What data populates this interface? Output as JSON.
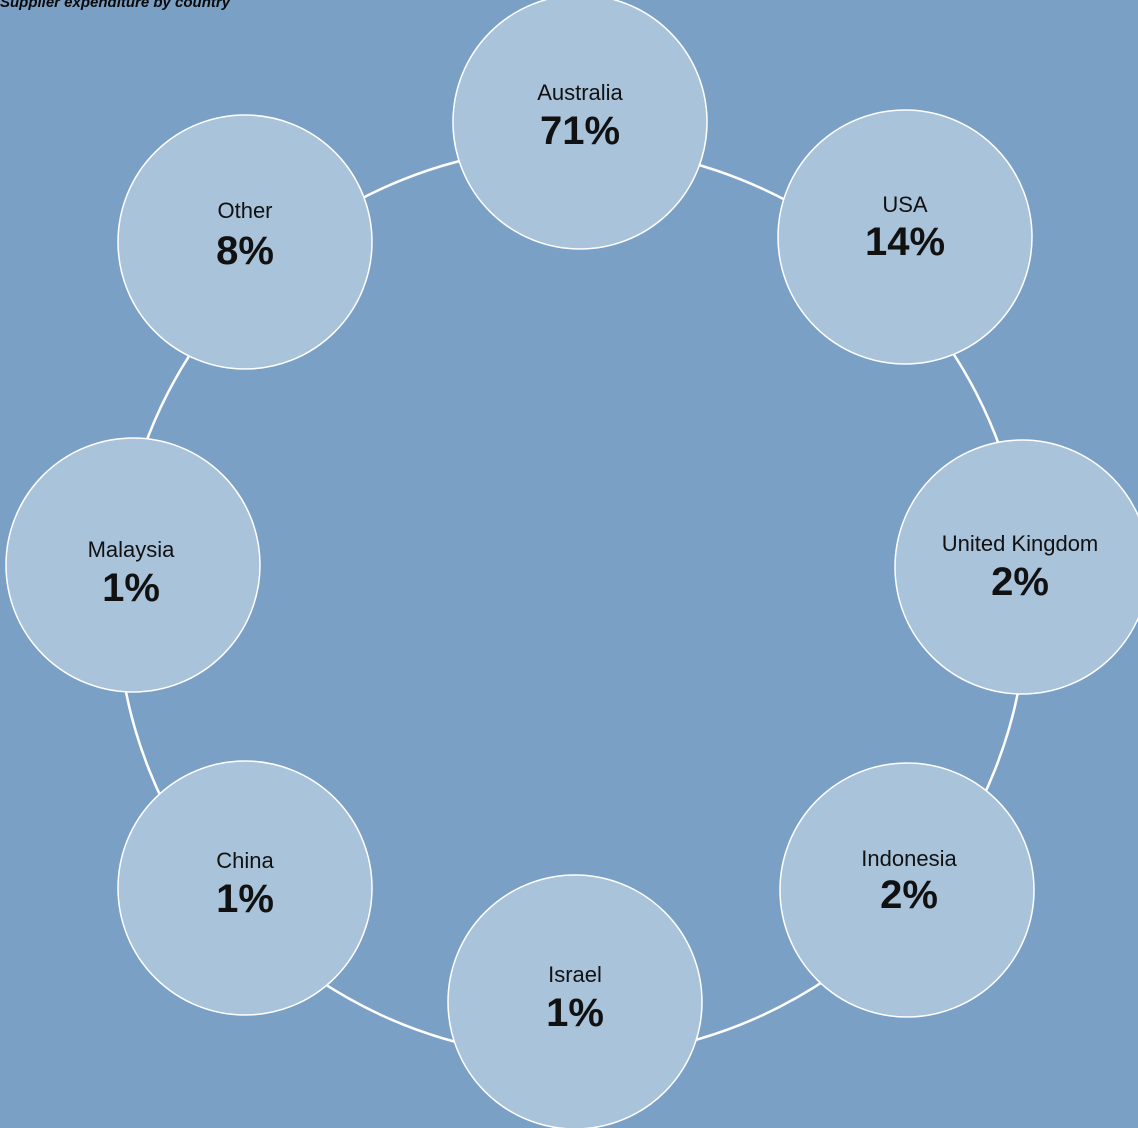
{
  "title": "Supplier expenditure by country",
  "colors": {
    "background": "#7ba0c6",
    "circle_fill": "#a9c3da",
    "land": "#f7f5f2",
    "ring": "#ffffff"
  },
  "chart_data": {
    "type": "pie",
    "title": "Supplier expenditure by country",
    "unit": "%",
    "categories": [
      "Australia",
      "USA",
      "United Kingdom",
      "Indonesia",
      "Israel",
      "China",
      "Malaysia",
      "Other"
    ],
    "values": [
      71,
      14,
      2,
      2,
      1,
      1,
      1,
      8
    ],
    "labels": [
      "71%",
      "14%",
      "2%",
      "2%",
      "1%",
      "1%",
      "1%",
      "8%"
    ]
  }
}
